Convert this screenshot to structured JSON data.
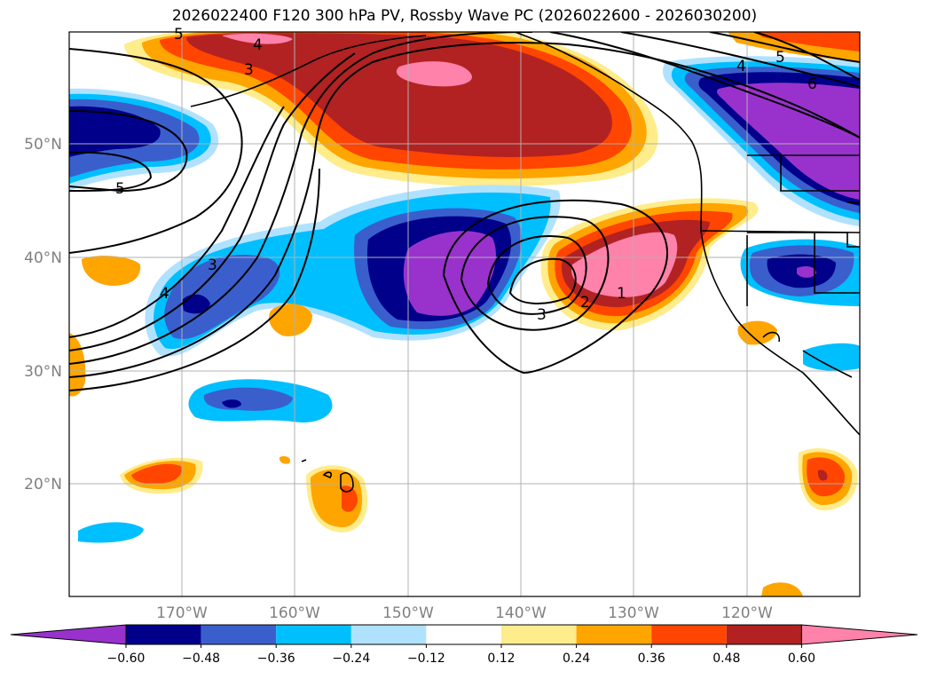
{
  "title": "2026022400 F120 300 hPa PV, Rossby Wave PC (2026022600 - 2026030200)",
  "lat_labels": [
    "50°N",
    "40°N",
    "30°N",
    "20°N"
  ],
  "lon_labels": [
    "170°W",
    "160°W",
    "150°W",
    "140°W",
    "130°W",
    "120°W"
  ],
  "contour_labels": [
    "5",
    "4",
    "3",
    "4",
    "5",
    "3",
    "4",
    "5",
    "3",
    "2",
    "1",
    "6"
  ],
  "colorbar": {
    "tick_labels": [
      "−0.60",
      "−0.48",
      "−0.36",
      "−0.24",
      "−0.12",
      "0.12",
      "0.24",
      "0.36",
      "0.48",
      "0.60"
    ],
    "colors": [
      "#9932CC",
      "#00008B",
      "#3A5FCD",
      "#00BFFF",
      "#B0E2FF",
      "#FFFFFF",
      "#FFEC8B",
      "#FFA500",
      "#FF4500",
      "#B22222",
      "#FF82AB"
    ]
  },
  "chart_data": {
    "type": "map",
    "variable": "Rossby Wave PC (shaded), 300 hPa PV (contours)",
    "lat_range": [
      10,
      60
    ],
    "lon_range": [
      -180,
      -110
    ],
    "levels": [
      -0.6,
      -0.48,
      -0.36,
      -0.24,
      -0.12,
      0.12,
      0.24,
      0.36,
      0.48,
      0.6
    ],
    "contour_values": [
      1,
      2,
      3,
      4,
      5,
      6
    ]
  }
}
